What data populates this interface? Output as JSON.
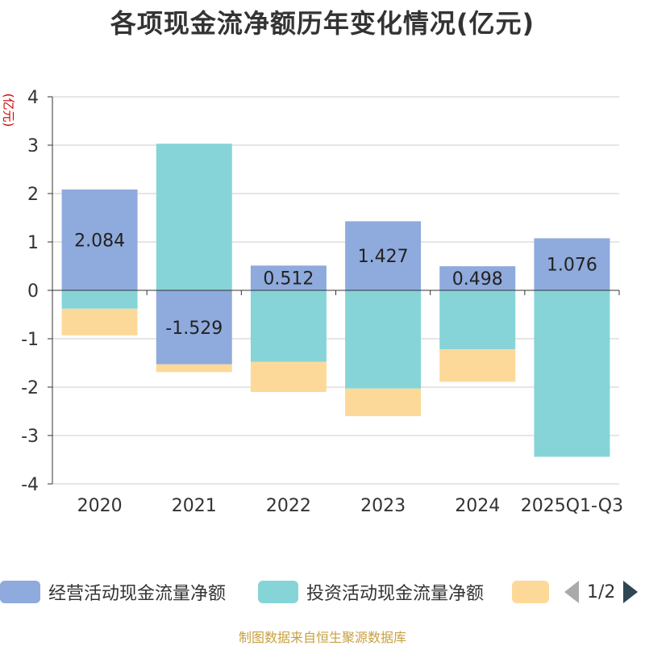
{
  "title": "各项现金流净额历年变化情况(亿元)",
  "unit_label": "(亿元)",
  "footer": "制图数据来自恒生聚源数据库",
  "legend": {
    "items": [
      {
        "label": "经营活动现金流量净额",
        "color": "#8faadc"
      },
      {
        "label": "投资活动现金流量净额",
        "color": "#86d4d8"
      },
      {
        "label": "",
        "color": "#fdd999"
      }
    ],
    "page": "1/2"
  },
  "chart_data": {
    "type": "bar",
    "stacked": true,
    "categories": [
      "2020",
      "2021",
      "2022",
      "2023",
      "2024",
      "2025Q1-Q3"
    ],
    "ylim": [
      -4,
      4
    ],
    "yticks": [
      4,
      3,
      2,
      1,
      0,
      -1,
      -2,
      -3,
      -4
    ],
    "ylabel": "(亿元)",
    "grid": true,
    "series": [
      {
        "name": "经营活动现金流量净额",
        "color": "#8faadc",
        "values": [
          2.084,
          -1.529,
          0.512,
          1.427,
          0.498,
          1.076
        ],
        "show_labels": true
      },
      {
        "name": "投资活动现金流量净额",
        "color": "#86d4d8",
        "values": [
          -0.38,
          3.03,
          -1.48,
          -2.03,
          -1.22,
          -3.44
        ],
        "show_labels": false
      },
      {
        "name": "",
        "color": "#fdd999",
        "values": [
          -0.55,
          -0.16,
          -0.62,
          -0.57,
          -0.67,
          0
        ],
        "show_labels": false
      }
    ]
  }
}
